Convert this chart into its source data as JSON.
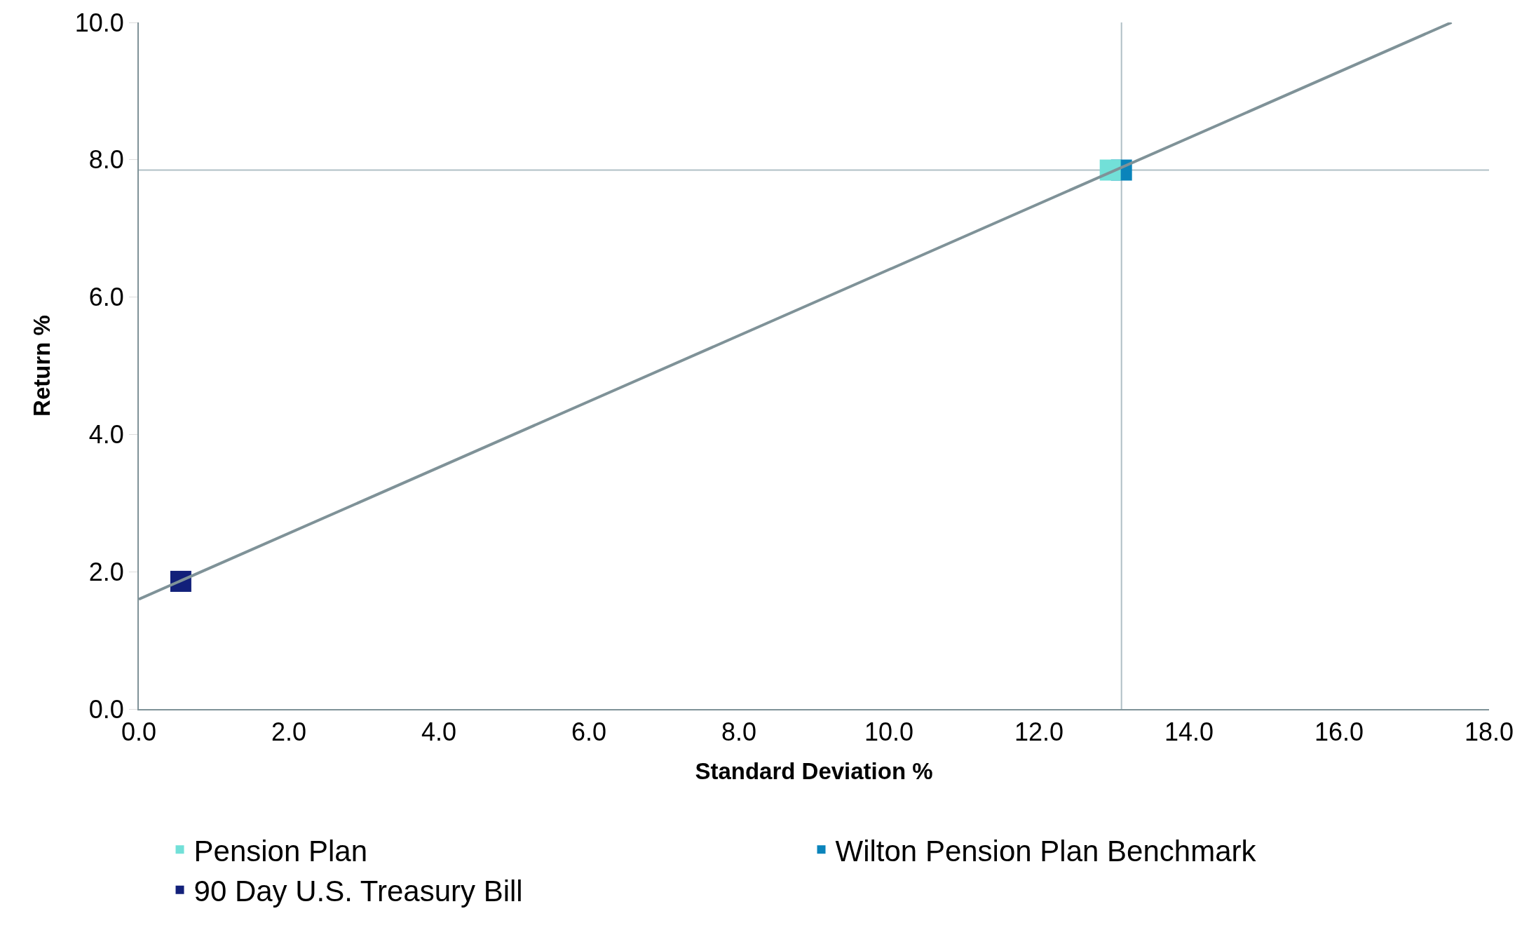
{
  "chart_data": {
    "type": "scatter",
    "xlabel": "Standard Deviation %",
    "ylabel": "Return %",
    "xlim": [
      0,
      18
    ],
    "ylim": [
      0,
      10
    ],
    "xticks": [
      {
        "value": 0,
        "label": "0.0"
      },
      {
        "value": 2,
        "label": "2.0"
      },
      {
        "value": 4,
        "label": "4.0"
      },
      {
        "value": 6,
        "label": "6.0"
      },
      {
        "value": 8,
        "label": "8.0"
      },
      {
        "value": 10,
        "label": "10.0"
      },
      {
        "value": 12,
        "label": "12.0"
      },
      {
        "value": 14,
        "label": "14.0"
      },
      {
        "value": 16,
        "label": "16.0"
      },
      {
        "value": 18,
        "label": "18.0"
      }
    ],
    "yticks": [
      {
        "value": 0,
        "label": "0.0"
      },
      {
        "value": 2,
        "label": "2.0"
      },
      {
        "value": 4,
        "label": "4.0"
      },
      {
        "value": 6,
        "label": "6.0"
      },
      {
        "value": 8,
        "label": "8.0"
      },
      {
        "value": 10,
        "label": "10.0"
      }
    ],
    "grid": false,
    "legend": "bottom",
    "series": [
      {
        "name": "Pension Plan",
        "color": "#72e0d8",
        "marker": "square",
        "x": [
          12.95
        ],
        "values": [
          7.85
        ]
      },
      {
        "name": "Wilton Pension Plan Benchmark",
        "color": "#0a84bb",
        "marker": "square",
        "x": [
          13.1
        ],
        "values": [
          7.85
        ]
      },
      {
        "name": "90 Day U.S. Treasury Bill",
        "color": "#12207a",
        "marker": "square",
        "x": [
          0.56
        ],
        "values": [
          1.86
        ]
      },
      {
        "type": "line",
        "color": "#7f9298",
        "x": [
          0,
          17.5
        ],
        "values": [
          1.6,
          10.0
        ]
      }
    ],
    "ref_lines": [
      {
        "axis": "x",
        "value": 13.1,
        "color": "#b0c0c6"
      },
      {
        "axis": "y",
        "value": 7.85,
        "color": "#b0c0c6"
      }
    ]
  }
}
